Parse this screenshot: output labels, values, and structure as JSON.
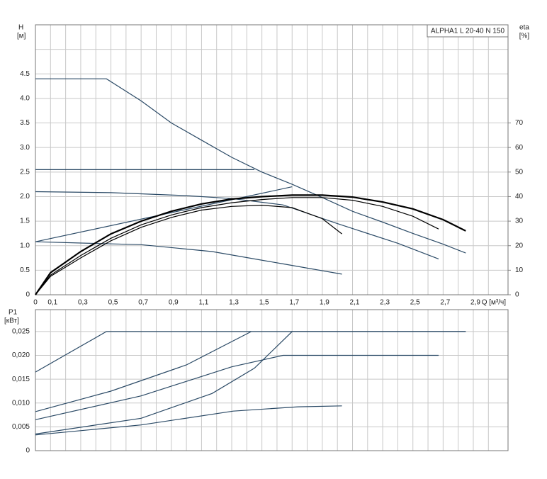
{
  "chart_data": [
    {
      "type": "line",
      "title": "ALPHA1 L 20-40 N 150",
      "y_label": "H",
      "y_unit": "[м]",
      "y2_label": "eta",
      "y2_unit": "[%]",
      "x_label": "Q [м³/ч]",
      "xlim": [
        0,
        3.13
      ],
      "ylim": [
        0,
        5.5
      ],
      "y2lim": [
        0,
        110
      ],
      "xticks": [
        0,
        {
          "value": 0.1,
          "label": "0,1"
        },
        {
          "value": 0.3,
          "label": "0,3"
        },
        {
          "value": 0.5,
          "label": "0,5"
        },
        {
          "value": 0.7,
          "label": "0,7"
        },
        {
          "value": 0.9,
          "label": "0,9"
        },
        {
          "value": 1.1,
          "label": "1,1"
        },
        {
          "value": 1.3,
          "label": "1,3"
        },
        {
          "value": 1.5,
          "label": "1,5"
        },
        {
          "value": 1.7,
          "label": "1,7"
        },
        {
          "value": 1.9,
          "label": "1,9"
        },
        {
          "value": 2.1,
          "label": "2,1"
        },
        {
          "value": 2.3,
          "label": "2,3"
        },
        {
          "value": 2.5,
          "label": "2,5"
        },
        {
          "value": 2.7,
          "label": "2,7"
        },
        {
          "value": 2.9,
          "label": "2,9"
        }
      ],
      "xgrid": [
        0.2,
        0.4,
        0.6,
        0.8,
        1.0,
        1.2,
        1.4,
        1.6,
        1.8,
        2.0,
        2.2,
        2.4,
        2.6,
        2.8,
        3.0
      ],
      "yticks": [
        0,
        0.5,
        {
          "value": 1,
          "label": "1.0"
        },
        1.5,
        {
          "value": 2,
          "label": "2.0"
        },
        2.5,
        {
          "value": 3,
          "label": "3.0"
        },
        3.5,
        {
          "value": 4,
          "label": "4.0"
        },
        4.5
      ],
      "ygrid": [
        5.0
      ],
      "y2ticks": [
        0,
        10,
        20,
        30,
        40,
        50,
        60,
        70
      ],
      "grid": true,
      "series": [
        {
          "color": "#2b4a66",
          "line_width": 1.2,
          "x": [
            0,
            0.47,
            0.7,
            0.9,
            1.1,
            1.3,
            1.5,
            1.7,
            1.9,
            2.1,
            2.3,
            2.5,
            2.7,
            2.85
          ],
          "values": [
            4.4,
            4.4,
            3.95,
            3.5,
            3.15,
            2.8,
            2.5,
            2.25,
            1.98,
            1.7,
            1.48,
            1.25,
            1.03,
            0.85
          ]
        },
        {
          "color": "#2b4a66",
          "line_width": 1.2,
          "x": [
            0,
            1.45
          ],
          "values": [
            2.55,
            2.55
          ]
        },
        {
          "color": "#2b4a66",
          "line_width": 1.2,
          "x": [
            0,
            0.5,
            1.0,
            1.3,
            1.64,
            2.0,
            2.4,
            2.67
          ],
          "values": [
            2.1,
            2.08,
            2.02,
            1.96,
            1.83,
            1.45,
            1.05,
            0.73
          ]
        },
        {
          "color": "#2b4a66",
          "line_width": 1.2,
          "x": [
            0,
            0.7,
            1.17,
            1.64,
            2.03
          ],
          "values": [
            1.08,
            1.02,
            0.88,
            0.63,
            0.42
          ]
        },
        {
          "color": "#2b4a66",
          "line_width": 1.2,
          "x": [
            0,
            1.7
          ],
          "values": [
            1.08,
            2.2
          ]
        },
        {
          "color": "#000000",
          "line_width": 2.2,
          "axis": "y2",
          "x": [
            0,
            0.1,
            0.3,
            0.5,
            0.7,
            0.9,
            1.1,
            1.3,
            1.5,
            1.7,
            1.9,
            2.1,
            2.3,
            2.5,
            2.7,
            2.85
          ],
          "values": [
            0,
            9,
            17.6,
            24.8,
            30,
            34,
            37,
            39,
            40,
            40.6,
            40.6,
            39.8,
            37.8,
            35,
            30.6,
            26
          ]
        },
        {
          "color": "#000000",
          "line_width": 1.2,
          "axis": "y2",
          "x": [
            0,
            0.1,
            0.3,
            0.5,
            0.7,
            0.9,
            1.1,
            1.3,
            1.5,
            1.7,
            1.9,
            2.1,
            2.3,
            2.5,
            2.67
          ],
          "values": [
            0,
            8,
            16,
            23,
            28.5,
            32.5,
            35.5,
            37.5,
            38.8,
            39.6,
            39.6,
            38.5,
            36,
            32,
            26.8
          ]
        },
        {
          "color": "#000000",
          "line_width": 1.2,
          "axis": "y2",
          "x": [
            0,
            0.1,
            0.3,
            0.5,
            0.7,
            0.9,
            1.1,
            1.3,
            1.5,
            1.7,
            1.9,
            2.03
          ],
          "values": [
            0,
            7.5,
            15,
            22,
            27.5,
            31.5,
            34.5,
            36,
            36.5,
            35.5,
            31,
            24.8
          ]
        }
      ]
    },
    {
      "type": "line",
      "y_label": "P1",
      "y_unit": "[кВт]",
      "xlim": [
        0,
        3.13
      ],
      "ylim": [
        0,
        0.0296
      ],
      "xgrid": [
        0.1,
        0.2,
        0.3,
        0.4,
        0.5,
        0.6,
        0.7,
        0.8,
        0.9,
        1.0,
        1.1,
        1.2,
        1.3,
        1.4,
        1.5,
        1.6,
        1.7,
        1.8,
        1.9,
        2.0,
        2.1,
        2.2,
        2.3,
        2.4,
        2.5,
        2.6,
        2.7,
        2.8,
        2.9,
        3.0
      ],
      "yticks": [
        0,
        {
          "value": 0.005,
          "label": "0,005"
        },
        {
          "value": 0.01,
          "label": "0,010"
        },
        {
          "value": 0.015,
          "label": "0,015"
        },
        {
          "value": 0.02,
          "label": "0,020"
        },
        {
          "value": 0.025,
          "label": "0,025"
        }
      ],
      "grid": true,
      "series": [
        {
          "color": "#2b4a66",
          "line_width": 1.2,
          "x": [
            0,
            0.47,
            2.85
          ],
          "values": [
            0.0165,
            0.025,
            0.025
          ]
        },
        {
          "color": "#2b4a66",
          "line_width": 1.2,
          "x": [
            0,
            0.5,
            1.0,
            1.43
          ],
          "values": [
            0.0082,
            0.0125,
            0.018,
            0.025
          ]
        },
        {
          "color": "#2b4a66",
          "line_width": 1.2,
          "x": [
            0,
            0.7,
            1.3,
            1.64,
            2.67
          ],
          "values": [
            0.0065,
            0.0115,
            0.0176,
            0.02,
            0.02
          ]
        },
        {
          "color": "#2b4a66",
          "line_width": 1.2,
          "x": [
            0,
            0.7,
            1.17,
            1.45,
            1.7,
            2.85
          ],
          "values": [
            0.0035,
            0.0068,
            0.012,
            0.0173,
            0.025,
            0.025
          ]
        },
        {
          "color": "#2b4a66",
          "line_width": 1.2,
          "x": [
            0,
            0.7,
            1.31,
            1.74,
            2.03
          ],
          "values": [
            0.0033,
            0.0054,
            0.0083,
            0.0092,
            0.0094
          ]
        }
      ]
    }
  ]
}
